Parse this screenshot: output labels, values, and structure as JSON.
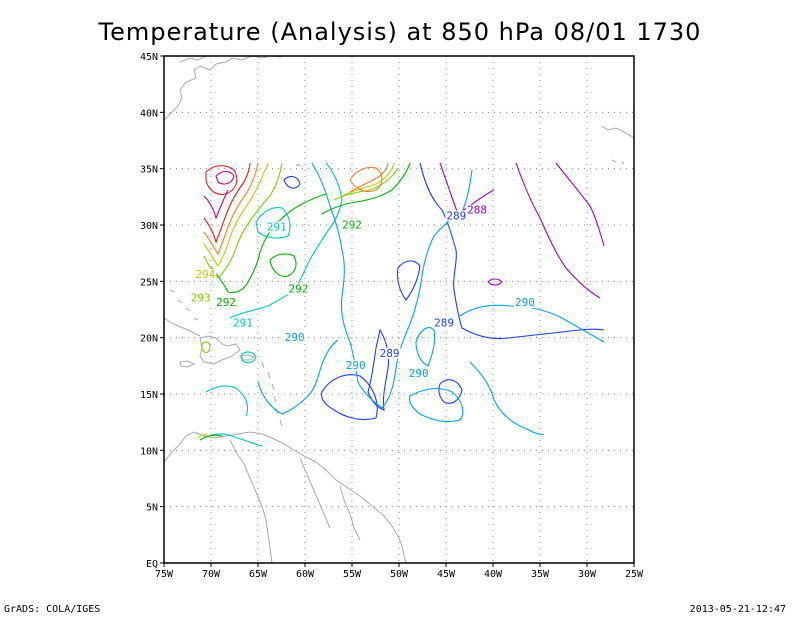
{
  "title": "Temperature (Analysis) at 850 hPa 08/01 1730",
  "footer": {
    "left": "GrADS: COLA/IGES",
    "right": "2013-05-21-12:47"
  },
  "axes": {
    "lon_labels": [
      {
        "lon": -75,
        "text": "75W"
      },
      {
        "lon": -70,
        "text": "70W"
      },
      {
        "lon": -65,
        "text": "65W"
      },
      {
        "lon": -60,
        "text": "60W"
      },
      {
        "lon": -55,
        "text": "55W"
      },
      {
        "lon": -50,
        "text": "50W"
      },
      {
        "lon": -45,
        "text": "45W"
      },
      {
        "lon": -40,
        "text": "40W"
      },
      {
        "lon": -35,
        "text": "35W"
      },
      {
        "lon": -30,
        "text": "30W"
      },
      {
        "lon": -25,
        "text": "25W"
      }
    ],
    "lat_labels": [
      {
        "lat": 0,
        "text": "EQ"
      },
      {
        "lat": 5,
        "text": "5N"
      },
      {
        "lat": 10,
        "text": "10N"
      },
      {
        "lat": 15,
        "text": "15N"
      },
      {
        "lat": 20,
        "text": "20N"
      },
      {
        "lat": 25,
        "text": "25N"
      },
      {
        "lat": 30,
        "text": "30N"
      },
      {
        "lat": 35,
        "text": "35N"
      },
      {
        "lat": 40,
        "text": "40N"
      },
      {
        "lat": 45,
        "text": "45N"
      }
    ],
    "lon_range": [
      -75,
      -25
    ],
    "lat_range": [
      0,
      45
    ],
    "grid": "dotted"
  },
  "colors": {
    "288": "#a000c8",
    "289": "#1e3cff",
    "290": "#00a0ff",
    "291": "#00c8c8",
    "292": "#00b400",
    "293": "#78d200",
    "294": "#c8c800",
    "295": "#f08228",
    "296": "#e61e1e",
    "297": "#c80078",
    "coast": "#aaaaaa"
  },
  "contour_labels": [
    {
      "lon": -41.7,
      "lat": 31.0,
      "text": "288",
      "level": "288"
    },
    {
      "lon": -43.9,
      "lat": 30.5,
      "text": "289",
      "level": "289"
    },
    {
      "lon": -45.2,
      "lat": 21.0,
      "text": "289",
      "level": "289"
    },
    {
      "lon": -51.0,
      "lat": 18.3,
      "text": "289",
      "level": "289"
    },
    {
      "lon": -36.6,
      "lat": 22.8,
      "text": "290",
      "level": "290"
    },
    {
      "lon": -47.9,
      "lat": 16.5,
      "text": "290",
      "level": "290"
    },
    {
      "lon": -54.6,
      "lat": 17.2,
      "text": "290",
      "level": "290"
    },
    {
      "lon": -61.1,
      "lat": 19.7,
      "text": "290",
      "level": "290"
    },
    {
      "lon": -66.6,
      "lat": 21.0,
      "text": "291",
      "level": "291"
    },
    {
      "lon": -63.0,
      "lat": 29.5,
      "text": "291",
      "level": "291"
    },
    {
      "lon": -55.0,
      "lat": 29.7,
      "text": "292",
      "level": "292"
    },
    {
      "lon": -60.7,
      "lat": 24.0,
      "text": "292",
      "level": "292"
    },
    {
      "lon": -68.4,
      "lat": 22.8,
      "text": "292",
      "level": "292"
    },
    {
      "lon": -71.1,
      "lat": 23.2,
      "text": "293",
      "level": "293"
    },
    {
      "lon": -70.6,
      "lat": 25.3,
      "text": "294",
      "level": "294"
    }
  ]
}
